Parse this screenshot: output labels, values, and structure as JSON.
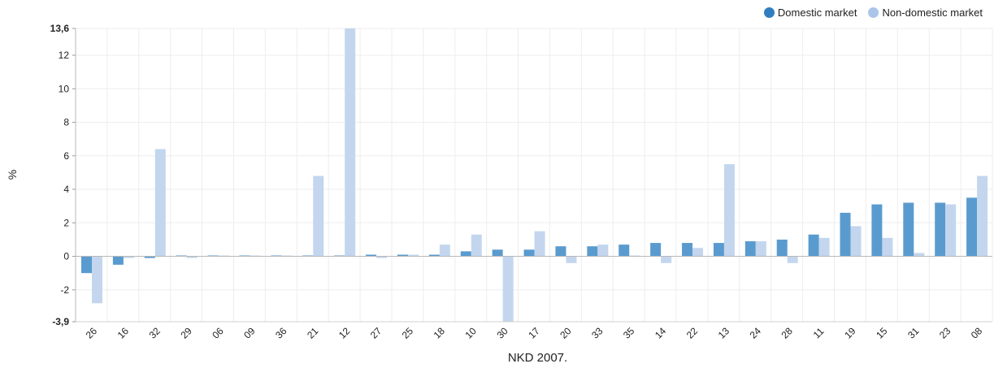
{
  "chart_data": {
    "type": "bar",
    "xlabel": "NKD 2007.",
    "ylabel": "%",
    "ylim": [
      -3.9,
      13.6
    ],
    "yticks": [
      -3.9,
      -2,
      0,
      2,
      4,
      6,
      8,
      10,
      12,
      13.6
    ],
    "ytick_labels": [
      "-3,9",
      "-2",
      "0",
      "2",
      "4",
      "6",
      "8",
      "10",
      "12",
      "13,6"
    ],
    "grid": true,
    "legend_position": "top-right",
    "categories": [
      "26",
      "16",
      "32",
      "29",
      "06",
      "09",
      "36",
      "21",
      "12",
      "27",
      "25",
      "18",
      "10",
      "30",
      "17",
      "20",
      "33",
      "35",
      "14",
      "22",
      "13",
      "24",
      "28",
      "11",
      "19",
      "15",
      "31",
      "23",
      "08"
    ],
    "series": [
      {
        "name": "Domestic market",
        "color": "#5a9bcf",
        "legend_color": "#2f7ec0",
        "values": [
          -1.0,
          -0.5,
          -0.1,
          0.05,
          0.05,
          0.05,
          0.05,
          0.05,
          0.05,
          0.1,
          0.1,
          0.1,
          0.3,
          0.4,
          0.4,
          0.6,
          0.6,
          0.7,
          0.8,
          0.8,
          0.8,
          0.9,
          1.0,
          1.3,
          2.6,
          3.1,
          3.2,
          3.2,
          3.5
        ]
      },
      {
        "name": "Non-domestic market",
        "color": "#c3d6ee",
        "legend_color": "#a9c6e8",
        "values": [
          -2.8,
          -0.1,
          6.4,
          -0.1,
          0.05,
          0.05,
          0.05,
          4.8,
          13.6,
          -0.1,
          0.1,
          0.7,
          1.3,
          -3.9,
          1.5,
          -0.4,
          0.7,
          0.05,
          -0.4,
          0.5,
          5.5,
          0.9,
          -0.4,
          1.1,
          1.8,
          1.1,
          0.2,
          3.1,
          4.8
        ]
      }
    ]
  }
}
